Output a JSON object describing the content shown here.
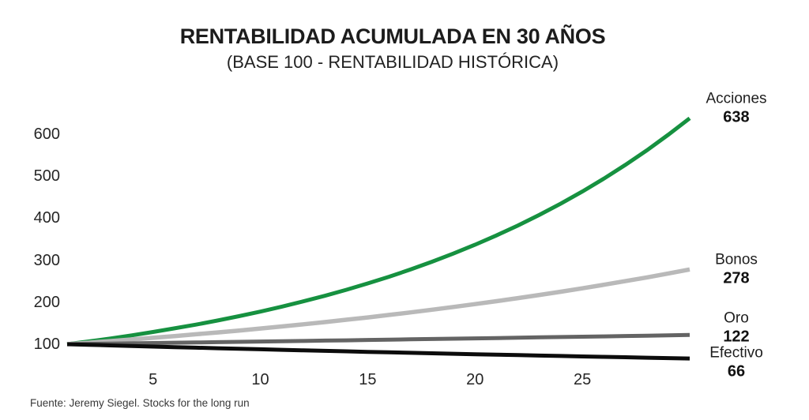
{
  "chart_data": {
    "type": "line",
    "title": "RENTABILIDAD ACUMULADA EN 30 AÑOS",
    "subtitle": "(BASE 100 - RENTABILIDAD HISTÓRICA)",
    "source": "Fuente: Jeremy Siegel. Stocks for the long run",
    "x_start": 1,
    "x_end": 30,
    "x_ticks": [
      5,
      10,
      15,
      20,
      25
    ],
    "y_ticks": [
      100,
      200,
      300,
      400,
      500,
      600
    ],
    "ylim": [
      60,
      660
    ],
    "grid": false,
    "legend_position": "right-of-line-ends",
    "series": [
      {
        "name": "Acciones",
        "end_value": 638,
        "color": "#169140",
        "stroke_width": 5,
        "values": [
          100,
          106.6,
          113.6,
          121.1,
          129.1,
          137.7,
          146.7,
          156.4,
          166.7,
          177.7,
          189.5,
          202.0,
          215.3,
          229.5,
          244.7,
          260.8,
          278.0,
          296.4,
          315.9,
          336.8,
          359.0,
          382.7,
          408.0,
          434.9,
          463.6,
          494.2,
          526.8,
          561.5,
          598.6,
          638
        ]
      },
      {
        "name": "Bonos",
        "end_value": 278,
        "color": "#b9b9b9",
        "stroke_width": 5.5,
        "values": [
          100,
          103.6,
          107.3,
          111.2,
          115.2,
          119.3,
          123.6,
          128.0,
          132.6,
          137.4,
          142.3,
          147.4,
          152.7,
          158.2,
          163.8,
          169.7,
          175.8,
          182.1,
          188.7,
          195.4,
          202.4,
          209.7,
          217.2,
          225.0,
          233.1,
          241.5,
          250.1,
          259.1,
          268.4,
          278
        ]
      },
      {
        "name": "Oro",
        "end_value": 122,
        "color": "#646464",
        "stroke_width": 5,
        "values": [
          100,
          100.7,
          101.4,
          102.1,
          102.8,
          103.5,
          104.2,
          104.9,
          105.6,
          106.4,
          107.1,
          107.8,
          108.6,
          109.3,
          110.1,
          110.8,
          111.6,
          112.4,
          113.1,
          113.9,
          114.7,
          115.5,
          116.3,
          117.1,
          117.9,
          118.7,
          119.5,
          120.3,
          121.2,
          122
        ]
      },
      {
        "name": "Efectivo",
        "end_value": 66,
        "color": "#0c0c0c",
        "stroke_width": 5,
        "values": [
          100,
          98.6,
          97.2,
          95.8,
          94.4,
          93.1,
          91.8,
          90.5,
          89.2,
          87.9,
          86.7,
          85.4,
          84.2,
          83.0,
          81.8,
          80.7,
          79.5,
          78.4,
          77.3,
          76.2,
          75.1,
          74.0,
          73.0,
          71.9,
          70.9,
          69.9,
          68.9,
          67.9,
          67.0,
          66
        ]
      }
    ]
  }
}
